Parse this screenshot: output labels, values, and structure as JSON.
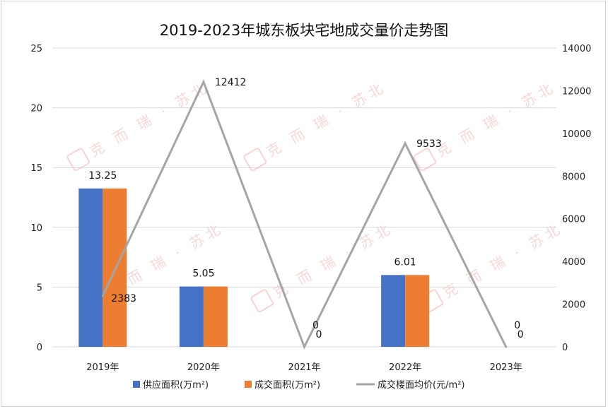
{
  "chart_data": {
    "type": "bar",
    "title": "2019-2023年城东板块宅地成交量价走势图",
    "categories": [
      "2019年",
      "2020年",
      "2021年",
      "2022年",
      "2023年"
    ],
    "series": [
      {
        "name": "供应面积(万m²)",
        "type": "bar",
        "axis": "left",
        "color": "#4472c4",
        "values": [
          13.25,
          5.05,
          0,
          6.01,
          0
        ],
        "show_labels": false
      },
      {
        "name": "成交面积(万m²)",
        "type": "bar",
        "axis": "left",
        "color": "#ed7d31",
        "values": [
          13.25,
          5.05,
          0,
          6.01,
          0
        ],
        "show_labels": true
      },
      {
        "name": "成交楼面均价(元/m²)",
        "type": "line",
        "axis": "right",
        "color": "#a5a5a5",
        "values": [
          2383,
          12412,
          0,
          9533,
          0
        ],
        "show_labels": true
      }
    ],
    "ylim_left": [
      0,
      25
    ],
    "yticks_left": [
      0,
      5,
      10,
      15,
      20,
      25
    ],
    "ylim_right": [
      0,
      14000
    ],
    "yticks_right": [
      0,
      2000,
      4000,
      6000,
      8000,
      10000,
      12000,
      14000
    ],
    "grid": true,
    "legend": "bottom",
    "watermark": "克 而 瑞 · 苏北"
  }
}
